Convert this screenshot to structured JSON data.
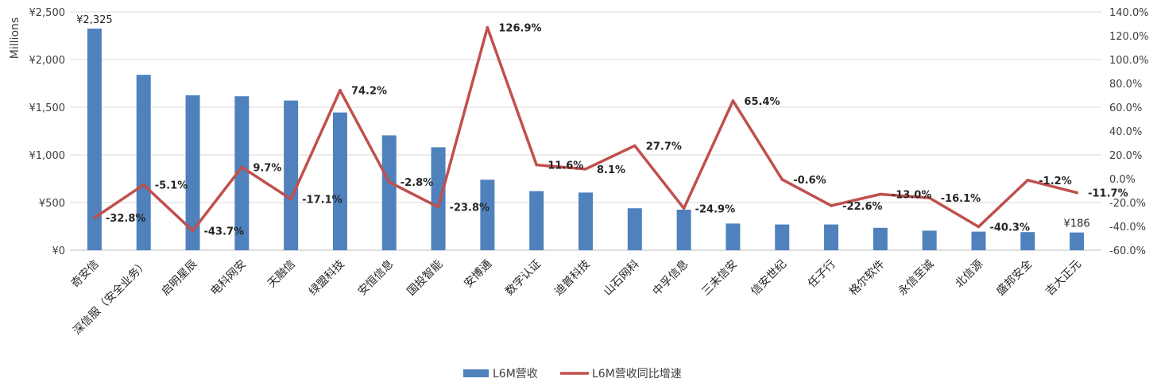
{
  "chart_data": {
    "type": "bar",
    "categories": [
      "奇安信",
      "深信服（安全业务）",
      "启明星辰",
      "电科网安",
      "天融信",
      "绿盟科技",
      "安恒信息",
      "国投智能",
      "安博通",
      "数字认证",
      "迪普科技",
      "山石网科",
      "中孚信息",
      "三未信安",
      "信安世纪",
      "任子行",
      "格尔软件",
      "永信至诚",
      "北信源",
      "盛邦安全",
      "吉大正元"
    ],
    "y_unit_label": "Millions",
    "y_left": {
      "min": 0,
      "max": 2500,
      "step": 500,
      "tick_labels": [
        "¥0",
        "¥500",
        "¥1,000",
        "¥1,500",
        "¥2,000",
        "¥2,500"
      ]
    },
    "y_right": {
      "min": -60,
      "max": 140,
      "step": 20,
      "tick_labels": [
        "-60.0%",
        "-40.0%",
        "-20.0%",
        "0.0%",
        "20.0%",
        "40.0%",
        "60.0%",
        "80.0%",
        "100.0%",
        "120.0%",
        "140.0%"
      ]
    },
    "grid": true,
    "legend_position": "bottom",
    "series": [
      {
        "name": "L6M营收",
        "type": "bar",
        "axis": "left",
        "color": "#4f81bd",
        "values": [
          2325,
          1840,
          1625,
          1615,
          1570,
          1445,
          1205,
          1080,
          740,
          620,
          605,
          440,
          425,
          280,
          270,
          270,
          235,
          205,
          195,
          190,
          186
        ],
        "data_labels": {
          "0": "¥2,325",
          "20": "¥186"
        }
      },
      {
        "name": "L6M营收同比增速",
        "type": "line",
        "axis": "right",
        "color": "#c0504d",
        "values": [
          -32.8,
          -5.1,
          -43.7,
          9.7,
          -17.1,
          74.2,
          -2.8,
          -23.8,
          126.9,
          11.6,
          8.1,
          27.7,
          -24.9,
          65.4,
          -0.6,
          -22.6,
          -13.0,
          -16.1,
          -40.3,
          -1.2,
          -11.7
        ],
        "data_labels": [
          "-32.8%",
          "-5.1%",
          "-43.7%",
          "9.7%",
          "-17.1%",
          "74.2%",
          "-2.8%",
          "-23.8%",
          "126.9%",
          "11.6%",
          "8.1%",
          "27.7%",
          "-24.9%",
          "65.4%",
          "-0.6%",
          "-22.6%",
          "-13.0%",
          "-16.1%",
          "-40.3%",
          "-1.2%",
          "-11.7%"
        ]
      }
    ]
  }
}
